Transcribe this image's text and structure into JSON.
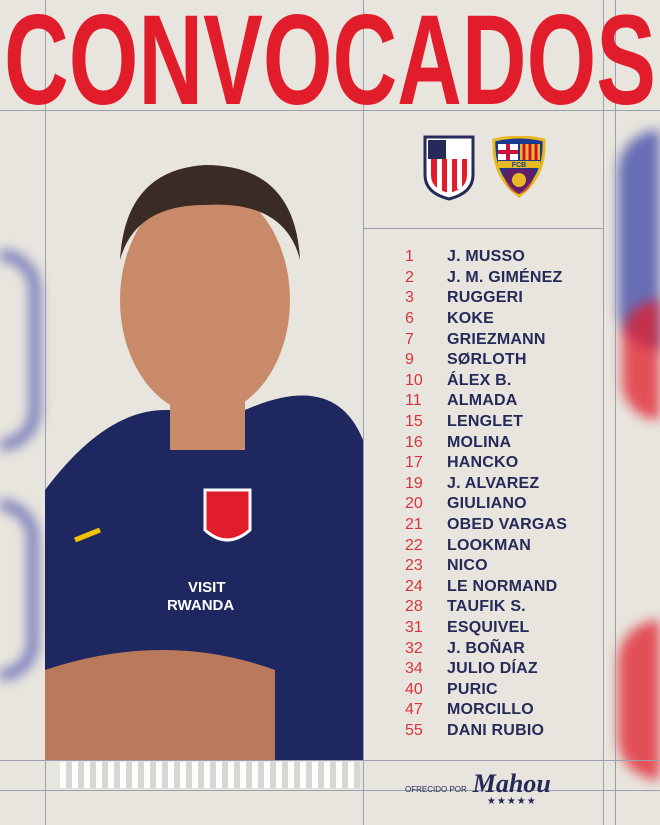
{
  "header": {
    "title": "CONVOCADOS"
  },
  "teams": [
    {
      "name": "Atlético de Madrid",
      "icon": "atletico-crest-icon"
    },
    {
      "name": "FC Barcelona",
      "icon": "fcb-crest-icon",
      "crest_text": "FCB"
    }
  ],
  "photo": {
    "shirt_text_line1": "VISIT",
    "shirt_text_line2": "RWANDA"
  },
  "squad": [
    {
      "number": "1",
      "name": "J. MUSSO"
    },
    {
      "number": "2",
      "name": "J. M. GIMÉNEZ"
    },
    {
      "number": "3",
      "name": "RUGGERI"
    },
    {
      "number": "6",
      "name": "KOKE"
    },
    {
      "number": "7",
      "name": "GRIEZMANN"
    },
    {
      "number": "9",
      "name": "SØRLOTH"
    },
    {
      "number": "10",
      "name": "ÁLEX B."
    },
    {
      "number": "11",
      "name": "ALMADA"
    },
    {
      "number": "15",
      "name": "LENGLET"
    },
    {
      "number": "16",
      "name": "MOLINA"
    },
    {
      "number": "17",
      "name": "HANCKO"
    },
    {
      "number": "19",
      "name": "J. ALVAREZ"
    },
    {
      "number": "20",
      "name": "GIULIANO"
    },
    {
      "number": "21",
      "name": "OBED VARGAS"
    },
    {
      "number": "22",
      "name": "LOOKMAN"
    },
    {
      "number": "23",
      "name": "NICO"
    },
    {
      "number": "24",
      "name": "LE NORMAND"
    },
    {
      "number": "28",
      "name": "TAUFIK S."
    },
    {
      "number": "31",
      "name": "ESQUIVEL"
    },
    {
      "number": "32",
      "name": "J. BOÑAR"
    },
    {
      "number": "34",
      "name": "JULIO DÍAZ"
    },
    {
      "number": "40",
      "name": "PURIC"
    },
    {
      "number": "47",
      "name": "MORCILLO"
    },
    {
      "number": "55",
      "name": "DANI RUBIO"
    }
  ],
  "sponsor": {
    "label": "OFRECIDO POR",
    "brand": "Mahou",
    "stars": "★★★★★"
  },
  "colors": {
    "accent_red": "#e21d2b",
    "navy": "#262a58",
    "background": "#e8e5de"
  }
}
